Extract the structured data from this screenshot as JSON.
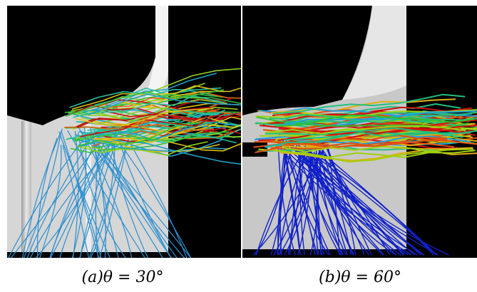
{
  "panels": [
    {
      "label": "(a)θ = 30°"
    },
    {
      "label": "(b)θ = 60°"
    }
  ]
}
